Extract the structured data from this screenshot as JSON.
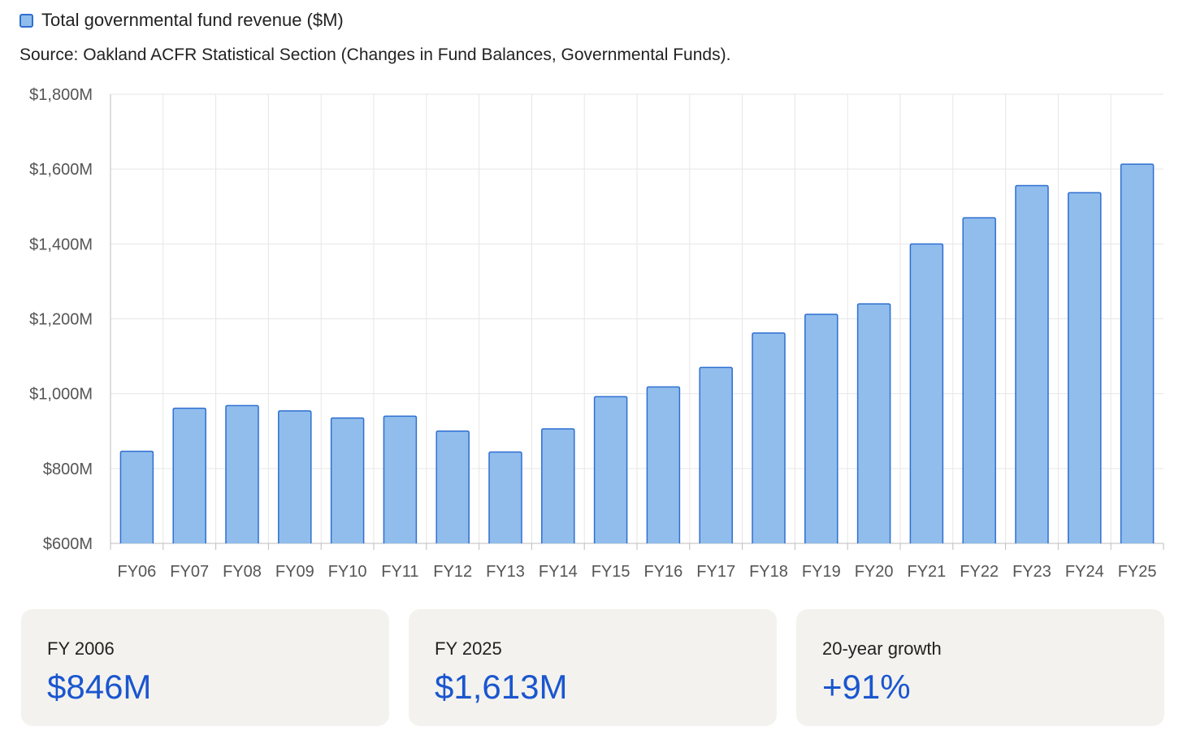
{
  "legend": {
    "label": "Total governmental fund revenue ($M)"
  },
  "source": "Source: Oakland ACFR Statistical Section (Changes in Fund Balances, Governmental Funds).",
  "colors": {
    "bar_fill": "#90bdec",
    "bar_stroke": "#2f6fd1",
    "grid": "#e6e6e6",
    "axis": "#bdbdbd",
    "accent": "#1a56cf"
  },
  "chart_data": {
    "type": "bar",
    "title": "",
    "xlabel": "",
    "ylabel": "",
    "series_name": "Total governmental fund revenue ($M)",
    "categories": [
      "FY06",
      "FY07",
      "FY08",
      "FY09",
      "FY10",
      "FY11",
      "FY12",
      "FY13",
      "FY14",
      "FY15",
      "FY16",
      "FY17",
      "FY18",
      "FY19",
      "FY20",
      "FY21",
      "FY22",
      "FY23",
      "FY24",
      "FY25"
    ],
    "values": [
      846,
      961,
      968,
      954,
      935,
      940,
      900,
      844,
      906,
      992,
      1018,
      1070,
      1162,
      1212,
      1240,
      1400,
      1470,
      1556,
      1537,
      1613
    ],
    "ylim": [
      600,
      1800
    ],
    "yticks": [
      600,
      800,
      1000,
      1200,
      1400,
      1600,
      1800
    ],
    "ytick_labels": [
      "$600M",
      "$800M",
      "$1,000M",
      "$1,200M",
      "$1,400M",
      "$1,600M",
      "$1,800M"
    ],
    "grid": true,
    "legend": "top-left"
  },
  "cards": [
    {
      "label": "FY 2006",
      "value": "$846M"
    },
    {
      "label": "FY 2025",
      "value": "$1,613M"
    },
    {
      "label": "20-year growth",
      "value": "+91%"
    }
  ]
}
